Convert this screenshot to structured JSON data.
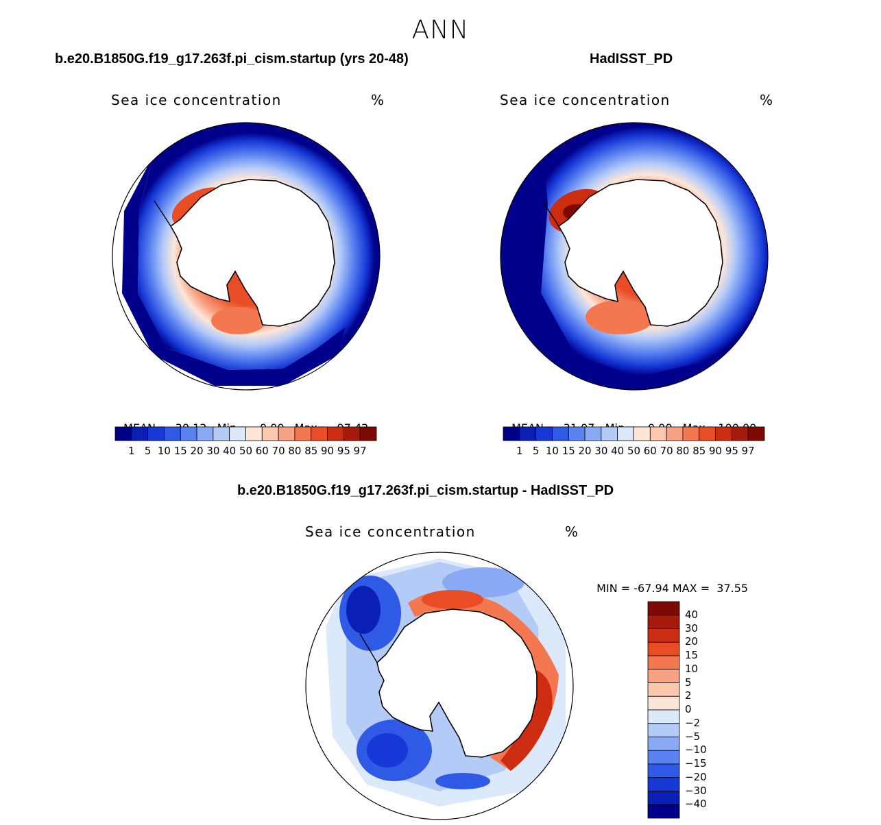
{
  "header": {
    "title": "ANN"
  },
  "panels": [
    {
      "title": "b.e20.B1850G.f19_g17.263f.pi_cism.startup (yrs 20-48)",
      "variable": "Sea ice concentration",
      "units": "%",
      "stats": {
        "mean_label": "MEAN=",
        "mean": "30.12",
        "min_label": "Min=",
        "min": "0.00",
        "max_label": "Max=",
        "max": "97.42"
      }
    },
    {
      "title": "HadISST_PD",
      "variable": "Sea ice concentration",
      "units": "%",
      "stats": {
        "mean_label": "MEAN=",
        "mean": "31.07",
        "min_label": "Min=",
        "min": "0.00",
        "max_label": "Max=",
        "max": "100.00"
      }
    },
    {
      "title": "b.e20.B1850G.f19_g17.263f.pi_cism.startup - HadISST_PD",
      "variable": "Sea ice concentration",
      "units": "%",
      "stats": {
        "min_label": "MIN =",
        "min": "-67.94",
        "max_label": "MAX =",
        "max": "37.55"
      }
    }
  ],
  "colorbars": {
    "absolute": {
      "labels": [
        "1",
        "5",
        "10",
        "15",
        "20",
        "30",
        "40",
        "50",
        "60",
        "70",
        "80",
        "85",
        "90",
        "95",
        "97"
      ],
      "colors": [
        "#00008a",
        "#0a1fb3",
        "#1638d6",
        "#2e5ae6",
        "#5a82f0",
        "#8aaaf5",
        "#b4cbf8",
        "#dce9fb",
        "#fde6d8",
        "#fbc7ad",
        "#f8a283",
        "#f3774f",
        "#e94d25",
        "#cc2c10",
        "#a51a0a",
        "#7d0a05"
      ]
    },
    "difference": {
      "labels": [
        "40",
        "30",
        "20",
        "15",
        "10",
        "5",
        "2",
        "0",
        "-2",
        "-5",
        "-10",
        "-15",
        "-20",
        "-30",
        "-40"
      ],
      "colors": [
        "#7d0a05",
        "#a51a0a",
        "#cc2c10",
        "#e94d25",
        "#f3774f",
        "#f8a283",
        "#fbc7ad",
        "#fde6d8",
        "#dce9fb",
        "#b4cbf8",
        "#8aaaf5",
        "#5a82f0",
        "#2e5ae6",
        "#1638d6",
        "#0a1fb3",
        "#00008a"
      ]
    }
  }
}
